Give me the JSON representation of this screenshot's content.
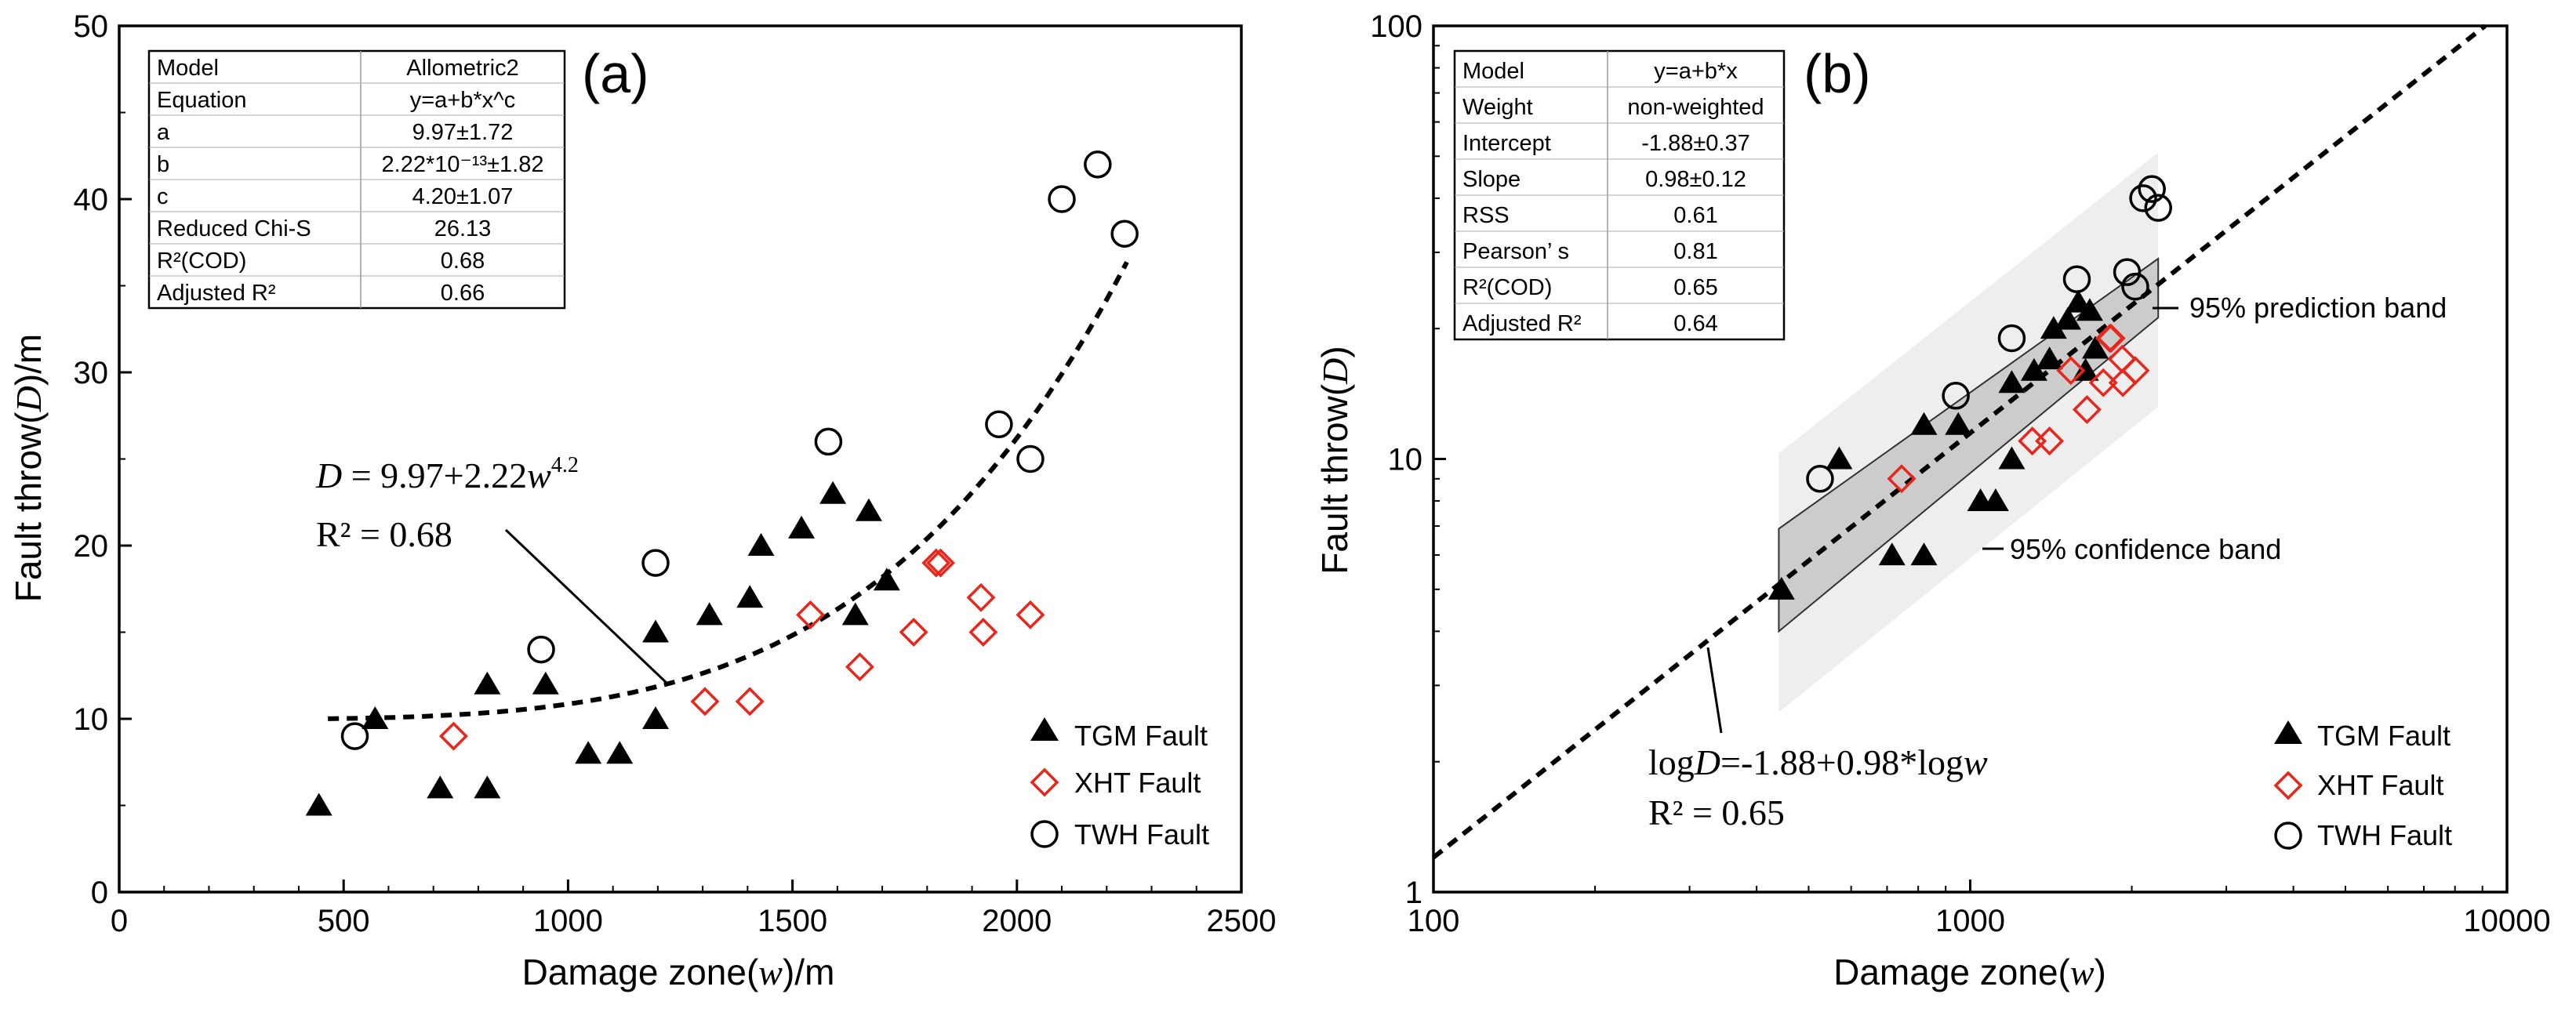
{
  "chart_data": [
    {
      "panel_label": "(a)",
      "type": "scatter",
      "xlabel_parts": [
        "Damage zone(",
        "w",
        ")/m"
      ],
      "ylabel_parts": [
        "Fault throw(",
        "D",
        ")/m"
      ],
      "xlim": [
        0,
        2500
      ],
      "ylim": [
        0,
        50
      ],
      "x_ticks": [
        "0",
        "500",
        "1000",
        "1500",
        "2000",
        "2500"
      ],
      "y_ticks": [
        "0",
        "10",
        "20",
        "30",
        "40",
        "50"
      ],
      "series": [
        {
          "name": "TGM Fault",
          "marker": "triangle",
          "x": [
            445,
            570,
            715,
            820,
            820,
            950,
            1045,
            1115,
            1195,
            1195,
            1315,
            1405,
            1430,
            1520,
            1590,
            1640,
            1670,
            1710
          ],
          "y": [
            5,
            10,
            6,
            6,
            12,
            12,
            8,
            8,
            10,
            15,
            16,
            17,
            20,
            21,
            23,
            16,
            22,
            18
          ]
        },
        {
          "name": "XHT Fault",
          "marker": "diamond",
          "x": [
            745,
            1305,
            1405,
            1540,
            1650,
            1770,
            1820,
            1830,
            1920,
            1925,
            2030
          ],
          "y": [
            9,
            11,
            11,
            16,
            13,
            15,
            19,
            19,
            17,
            15,
            16
          ]
        },
        {
          "name": "TWH Fault",
          "marker": "circle",
          "x": [
            525,
            940,
            1195,
            1580,
            1960,
            2030,
            2100,
            2180,
            2240
          ],
          "y": [
            9,
            14,
            19,
            26,
            27,
            25,
            40,
            42,
            38
          ]
        }
      ],
      "fit": {
        "a": 9.97,
        "b": 2.22e-13,
        "c": 4.2,
        "x_range": [
          465,
          2245
        ]
      },
      "equation_parts": [
        "D",
        " = 9.97+2.22",
        "w",
        "4.2"
      ],
      "r2_text": "R² = 0.68",
      "stats": [
        [
          "Model",
          "Allometric2"
        ],
        [
          "Equation",
          "y=a+b*x^c"
        ],
        [
          "a",
          "9.97±1.72"
        ],
        [
          "b",
          "2.22*10⁻¹³±1.82"
        ],
        [
          "c",
          "4.20±1.07"
        ],
        [
          "Reduced Chi-S",
          "26.13"
        ],
        [
          "R²(COD)",
          "0.68"
        ],
        [
          "Adjusted R²",
          "0.66"
        ]
      ]
    },
    {
      "panel_label": "(b)",
      "type": "scatter",
      "scale": "log-log",
      "xlabel_parts": [
        "Damage zone(",
        "w",
        ")"
      ],
      "ylabel_parts": [
        "Fault throw(",
        "D",
        ")"
      ],
      "xlim": [
        100,
        10000
      ],
      "ylim": [
        1,
        100
      ],
      "x_ticks": [
        "100",
        "1000",
        "10000"
      ],
      "y_ticks": [
        "1",
        "10",
        "100"
      ],
      "series": [
        {
          "name": "TGM Fault",
          "marker": "triangle",
          "x": [
            445,
            570,
            715,
            820,
            820,
            950,
            1045,
            1115,
            1195,
            1195,
            1315,
            1405,
            1430,
            1520,
            1590,
            1640,
            1670,
            1710
          ],
          "y": [
            5,
            10,
            6,
            6,
            12,
            12,
            8,
            8,
            10,
            15,
            16,
            17,
            20,
            21,
            23,
            16,
            22,
            18
          ]
        },
        {
          "name": "XHT Fault",
          "marker": "diamond",
          "x": [
            745,
            1305,
            1405,
            1540,
            1650,
            1770,
            1820,
            1830,
            1920,
            1925,
            2030
          ],
          "y": [
            9,
            11,
            11,
            16,
            13,
            15,
            19,
            19,
            17,
            15,
            16
          ]
        },
        {
          "name": "TWH Fault",
          "marker": "circle",
          "x": [
            525,
            940,
            1195,
            1580,
            1960,
            2030,
            2100,
            2180,
            2240
          ],
          "y": [
            9,
            14,
            19,
            26,
            27,
            25,
            40,
            42,
            38
          ]
        }
      ],
      "fit": {
        "intercept": -1.88,
        "slope": 0.98
      },
      "prediction_band": {
        "x": [
          440,
          2240
        ],
        "low": [
          2.6,
          13.2
        ],
        "high": [
          10.3,
          51.0
        ]
      },
      "confidence_band": {
        "x": [
          440,
          2240
        ],
        "low": [
          4.0,
          21.2
        ],
        "high": [
          6.9,
          29.0
        ]
      },
      "prediction_label": "95% prediction band",
      "confidence_label": "95% confidence band",
      "equation_parts": [
        "log",
        "D",
        "=-1.88+0.98*log",
        "w"
      ],
      "r2_text": "R² = 0.65",
      "stats": [
        [
          "Model",
          "y=a+b*x"
        ],
        [
          "Weight",
          "non-weighted"
        ],
        [
          "Intercept",
          "-1.88±0.37"
        ],
        [
          "Slope",
          "0.98±0.12"
        ],
        [
          "RSS",
          "0.61"
        ],
        [
          "Pearson’ s",
          "0.81"
        ],
        [
          "R²(COD)",
          "0.65"
        ],
        [
          "Adjusted R²",
          "0.64"
        ]
      ]
    }
  ],
  "colors": {
    "triangle": "#000000",
    "diamond": "#e8261b",
    "circle": "#000000",
    "axis": "#000000"
  }
}
